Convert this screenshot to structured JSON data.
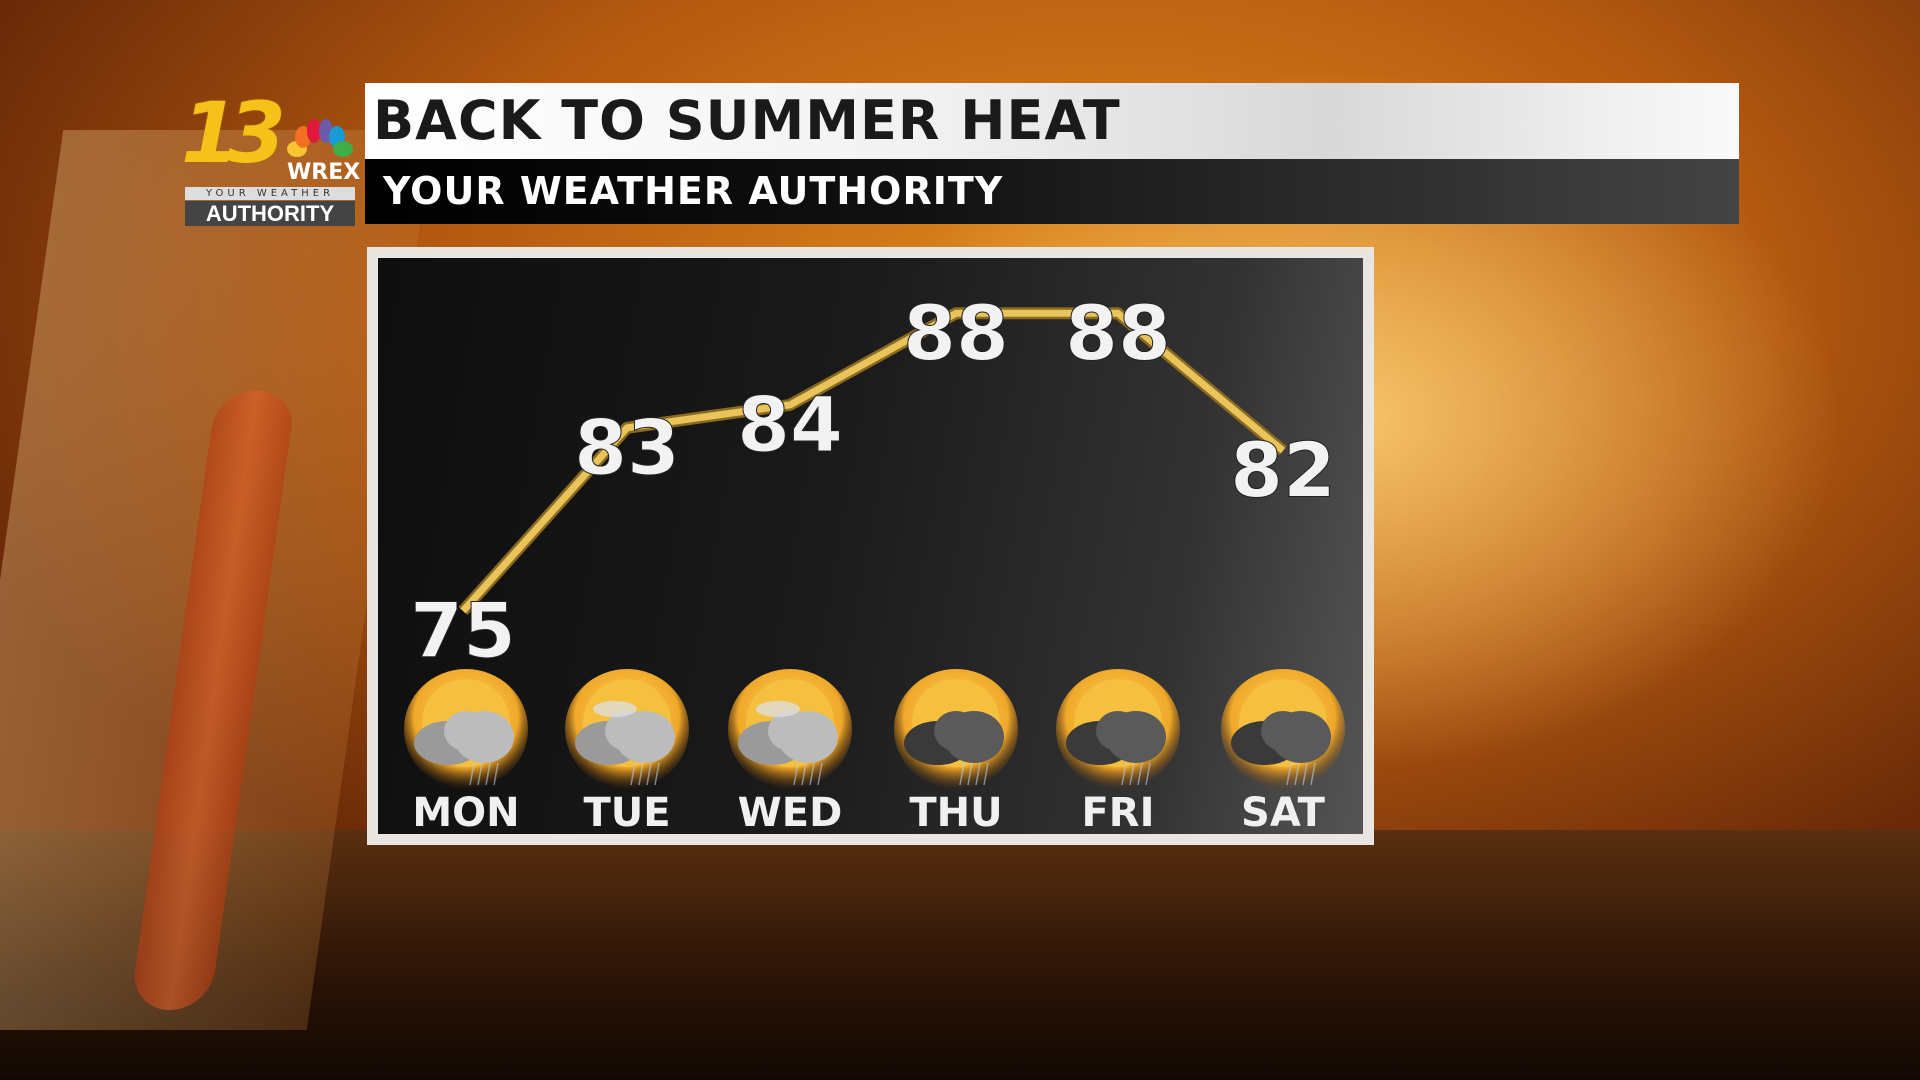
{
  "logo": {
    "channel": "13",
    "station": "WREX",
    "tagline_top": "YOUR WEATHER",
    "tagline_bottom": "AUTHORITY"
  },
  "header": {
    "title": "BACK TO SUMMER HEAT",
    "subtitle": "YOUR WEATHER AUTHORITY"
  },
  "colors": {
    "line": "#e8c45a",
    "sun": "#f5c040",
    "title_bg": "#ffffff",
    "subtitle_bg": "#000000"
  },
  "chart_data": {
    "type": "line",
    "categories": [
      "MON",
      "TUE",
      "WED",
      "THU",
      "FRI",
      "SAT"
    ],
    "values": [
      75,
      83,
      84,
      88,
      88,
      82
    ],
    "data_labels": [
      "75",
      "83",
      "84",
      "88",
      "88",
      "82"
    ],
    "icons": [
      "sun-cloud-rain-icon",
      "sun-cloud-wind-icon",
      "sun-cloud-wind-icon",
      "sun-thunderstorm-icon",
      "sun-thunderstorm-icon",
      "sun-thunderstorm-icon"
    ],
    "grid": false
  }
}
